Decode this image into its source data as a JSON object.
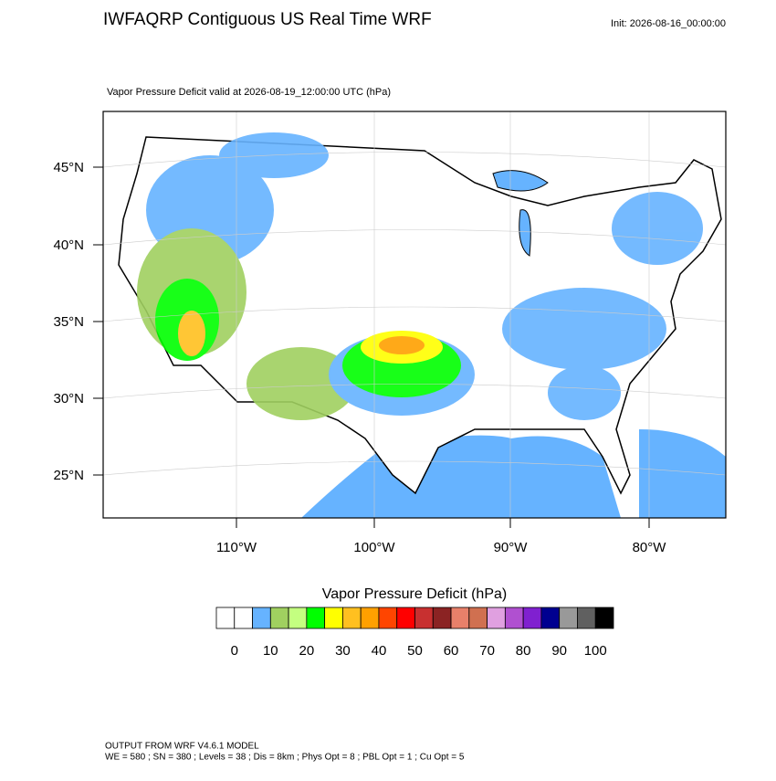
{
  "header": {
    "title": "IWFAQRP Contiguous US Real Time WRF",
    "init": "Init: 2026-08-16_00:00:00",
    "subtitle": "Vapor Pressure Deficit valid at 2026-08-19_12:00:00 UTC   (hPa)"
  },
  "map": {
    "lat_labels": [
      "45°N",
      "40°N",
      "35°N",
      "30°N",
      "25°N"
    ],
    "lon_labels": [
      "110°W",
      "100°W",
      "90°W",
      "80°W"
    ]
  },
  "colorbar": {
    "title": "Vapor Pressure Deficit  (hPa)",
    "colors": [
      "#ffffff",
      "#ffffff",
      "#66b3ff",
      "#a0d060",
      "#c4ff80",
      "#00ff00",
      "#ffff00",
      "#ffc020",
      "#ffa000",
      "#ff4500",
      "#ff0000",
      "#c83030",
      "#8b2323",
      "#e8806a",
      "#d07050",
      "#e0a0e0",
      "#b050d0",
      "#8020d0",
      "#000090",
      "#999999",
      "#606060",
      "#000000"
    ],
    "levels": [
      0,
      10,
      20,
      30,
      40,
      50,
      60,
      70,
      80,
      90,
      100
    ]
  },
  "footer": {
    "line1": "OUTPUT FROM WRF V4.6.1 MODEL",
    "line2": "WE = 580 ; SN = 380 ; Levels = 38 ; Dis = 8km ; Phys Opt = 8 ; PBL Opt = 1 ; Cu Opt = 5"
  }
}
